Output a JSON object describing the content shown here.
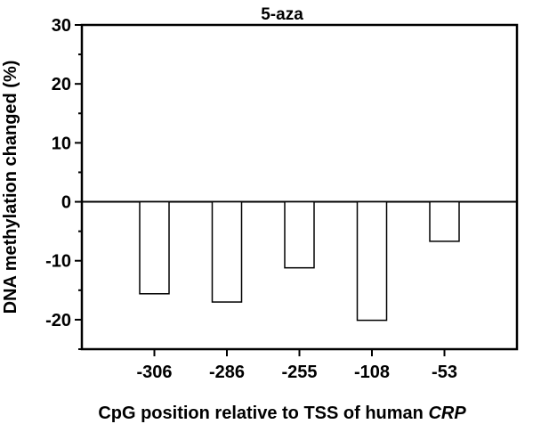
{
  "chart_data": {
    "type": "bar",
    "title": "5-aza",
    "xlabel": "CpG position relative to TSS of human ",
    "xlabel_italic": "CRP",
    "ylabel": "DNA methylation changed (%)",
    "categories": [
      "-306",
      "-286",
      "-255",
      "-108",
      "-53"
    ],
    "values": [
      -15.6,
      -17.0,
      -11.2,
      -20.1,
      -6.7
    ],
    "ylim": [
      -25,
      30
    ],
    "yticks": [
      "-20",
      "-10",
      "0",
      "10",
      "20",
      "30"
    ],
    "bar_fill": "#ffffff",
    "bar_stroke": "#000000",
    "grid": false,
    "legend": "none"
  }
}
